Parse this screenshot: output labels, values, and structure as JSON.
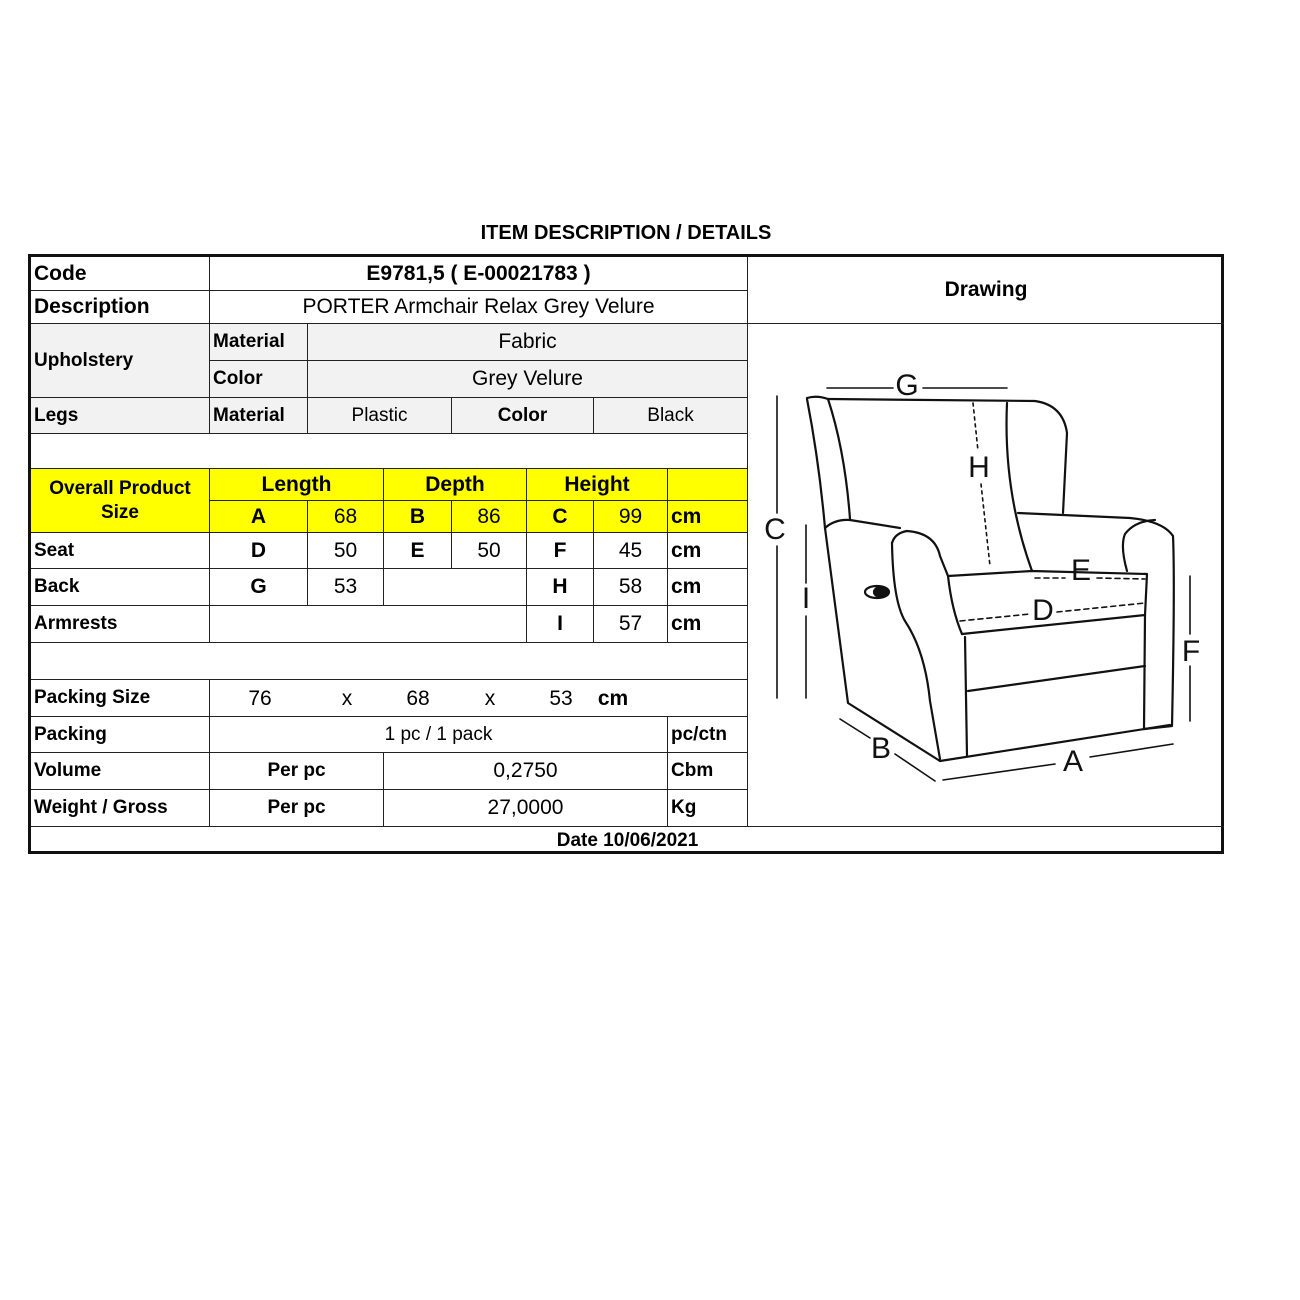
{
  "title": "ITEM DESCRIPTION / DETAILS",
  "code": {
    "label": "Code",
    "value": "E9781,5  ( E-00021783 )"
  },
  "description": {
    "label": "Description",
    "value": "PORTER Armchair Relax Grey Velure"
  },
  "drawing_label": "Drawing",
  "upholstery": {
    "label": "Upholstery",
    "material_label": "Material",
    "material": "Fabric",
    "color_label": "Color",
    "color": "Grey Velure"
  },
  "legs": {
    "label": "Legs",
    "material_label": "Material",
    "material": "Plastic",
    "color_label": "Color",
    "color": "Black"
  },
  "overall": {
    "label": "Overall Product Size",
    "length": "Length",
    "depth": "Depth",
    "height": "Height",
    "a": "A",
    "a_val": "68",
    "b": "B",
    "b_val": "86",
    "c": "C",
    "c_val": "99",
    "unit": "cm"
  },
  "seat": {
    "label": "Seat",
    "d": "D",
    "d_val": "50",
    "e": "E",
    "e_val": "50",
    "f": "F",
    "f_val": "45",
    "unit": "cm"
  },
  "back": {
    "label": "Back",
    "g": "G",
    "g_val": "53",
    "h": "H",
    "h_val": "58",
    "unit": "cm"
  },
  "armrests": {
    "label": "Armrests",
    "i": "I",
    "i_val": "57",
    "unit": "cm"
  },
  "packing_size": {
    "label": "Packing Size",
    "l": "76",
    "x1": "x",
    "w": "68",
    "x2": "x",
    "h": "53",
    "unit": "cm"
  },
  "packing": {
    "label": "Packing",
    "value": "1 pc / 1 pack",
    "unit": "pc/ctn"
  },
  "volume": {
    "label": "Volume",
    "per": "Per pc",
    "value": "0,2750",
    "unit": "Cbm"
  },
  "weight": {
    "label": "Weight / Gross",
    "per": "Per pc",
    "value": "27,0000",
    "unit": "Kg"
  },
  "date": "Date 10/06/2021",
  "diagram_labels": {
    "a": "A",
    "b": "B",
    "c": "C",
    "d": "D",
    "e": "E",
    "f": "F",
    "g": "G",
    "h": "H",
    "i": "I"
  },
  "colors": {
    "highlight": "#ffff00",
    "shade": "#f2f2f2"
  }
}
